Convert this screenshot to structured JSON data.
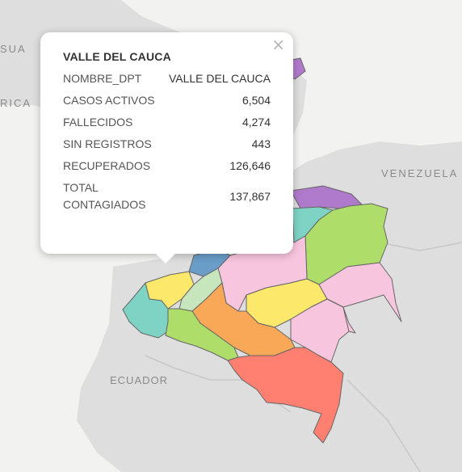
{
  "map": {
    "labels": {
      "venezuela": "VENEZUELA",
      "ecuador": "ECUADOR",
      "usa_fragment": "SUA",
      "rica_fragment": "RICA"
    },
    "colors": {
      "land": "#dedede",
      "sea": "#f2f2f0",
      "border": "#777777"
    },
    "departments": [
      {
        "id": "la-guajira",
        "color": "#b07acc"
      },
      {
        "id": "cesar",
        "color": "#7fd3c5"
      },
      {
        "id": "norte-santander",
        "color": "#6a9dc8"
      },
      {
        "id": "arauca",
        "color": "#aedd6a"
      },
      {
        "id": "santander",
        "color": "#f8c5de"
      },
      {
        "id": "boyaca",
        "color": "#fce86b"
      },
      {
        "id": "antioquia-east",
        "color": "#fce86b"
      },
      {
        "id": "caldas",
        "color": "#c7e6be"
      },
      {
        "id": "casanare",
        "color": "#f9a857"
      },
      {
        "id": "meta",
        "color": "#fce86b"
      },
      {
        "id": "vichada",
        "color": "#f8c5de"
      },
      {
        "id": "valle-del-cauca",
        "color": "#7fd3c5"
      },
      {
        "id": "tolima",
        "color": "#f9a857"
      },
      {
        "id": "cauca",
        "color": "#aedd6a"
      },
      {
        "id": "guaviare",
        "color": "#f9a857"
      },
      {
        "id": "amazonas",
        "color": "#ff8070"
      },
      {
        "id": "vaupes",
        "color": "#f8c5de"
      }
    ]
  },
  "popup": {
    "title": "VALLE DEL CAUCA",
    "close": "×",
    "rows": [
      {
        "key": "NOMBRE_DPT",
        "value": "VALLE DEL CAUCA"
      },
      {
        "key": "CASOS ACTIVOS",
        "value": "6,504"
      },
      {
        "key": "FALLECIDOS",
        "value": "4,274"
      },
      {
        "key": "SIN REGISTROS",
        "value": "443"
      },
      {
        "key": "RECUPERADOS",
        "value": "126,646"
      },
      {
        "key": "TOTAL CONTAGIADOS",
        "value": "137,867"
      }
    ]
  }
}
